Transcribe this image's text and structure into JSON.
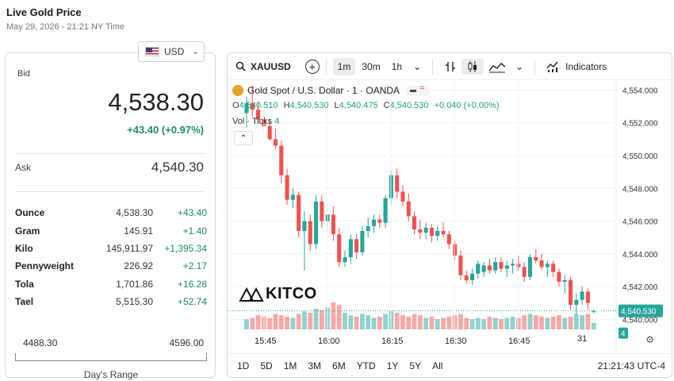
{
  "header": {
    "title": "Live Gold Price",
    "subtitle": "May 29, 2026 - 21:21 NY Time"
  },
  "currency": {
    "selected": "USD",
    "flag_icon": "us-flag-icon"
  },
  "quote": {
    "bid_label": "Bid",
    "bid": "4,538.30",
    "change": "+43.40 (+0.97%)",
    "ask_label": "Ask",
    "ask": "4,540.30"
  },
  "units": [
    {
      "name": "Ounce",
      "price": "4,538.30",
      "change": "+43.40"
    },
    {
      "name": "Gram",
      "price": "145.91",
      "change": "+1.40"
    },
    {
      "name": "Kilo",
      "price": "145,911.97",
      "change": "+1,395.34"
    },
    {
      "name": "Pennyweight",
      "price": "226.92",
      "change": "+2.17"
    },
    {
      "name": "Tola",
      "price": "1,701.86",
      "change": "+16.28"
    },
    {
      "name": "Tael",
      "price": "5,515.30",
      "change": "+52.74"
    }
  ],
  "day_range": {
    "low": "4488.30",
    "high": "4596.00",
    "label": "Day's Range"
  },
  "toolbar": {
    "symbol": "XAUUSD",
    "intervals": [
      "1m",
      "30m",
      "1h"
    ],
    "active_interval": "1m",
    "indicators_label": "Indicators"
  },
  "legend": {
    "instrument": "Gold Spot / U.S. Dollar · 1 · OANDA",
    "o_label": "O",
    "o": "4,540.510",
    "h_label": "H",
    "h": "4,540.530",
    "l_label": "L",
    "l": "4,540.475",
    "c_label": "C",
    "c": "4,540.530",
    "chg": "+0.040 (+0.00%)",
    "vol_label": "Vol · Ticks",
    "vol_value": "4"
  },
  "watermark": "KITCO",
  "bottom": {
    "ranges": [
      "1D",
      "5D",
      "1M",
      "3M",
      "6M",
      "YTD",
      "1Y",
      "5Y",
      "All"
    ],
    "clock": "21:21:43 UTC-4",
    "date_label": "31"
  },
  "colors": {
    "up": "#26a69a",
    "down": "#ef5350",
    "accent": "#1e8e5a"
  },
  "chart_data": {
    "type": "candlestick",
    "y_ticks": [
      "4,554.000",
      "4,552.000",
      "4,550.000",
      "4,548.000",
      "4,546.000",
      "4,544.000",
      "4,542.000",
      "4,540.000"
    ],
    "x_ticks": [
      "15:45",
      "16:00",
      "16:15",
      "16:30",
      "16:45"
    ],
    "ylim": [
      4539.3,
      4554.6
    ],
    "last_price": "4,540.530",
    "last_volume": "4",
    "candles": [
      [
        4552.6,
        4553.6,
        4551.7,
        4553.2,
        8
      ],
      [
        4553.2,
        4554.3,
        4552.4,
        4552.8,
        9
      ],
      [
        4552.8,
        4553.3,
        4552.0,
        4552.2,
        11
      ],
      [
        4552.2,
        4552.6,
        4551.4,
        4551.8,
        10
      ],
      [
        4551.8,
        4552.2,
        4550.9,
        4551.0,
        9
      ],
      [
        4551.0,
        4551.6,
        4550.4,
        4550.6,
        12
      ],
      [
        4550.6,
        4550.9,
        4548.3,
        4548.8,
        11
      ],
      [
        4548.8,
        4549.2,
        4547.0,
        4547.3,
        10
      ],
      [
        4547.3,
        4548.0,
        4546.8,
        4547.6,
        9
      ],
      [
        4547.6,
        4547.8,
        4545.0,
        4545.4,
        12
      ],
      [
        4545.4,
        4546.6,
        4543.0,
        4546.0,
        14
      ],
      [
        4546.0,
        4546.4,
        4544.2,
        4544.6,
        13
      ],
      [
        4544.6,
        4547.6,
        4544.3,
        4547.2,
        16
      ],
      [
        4547.2,
        4547.6,
        4545.6,
        4546.0,
        15
      ],
      [
        4546.0,
        4547.0,
        4545.2,
        4546.4,
        17
      ],
      [
        4546.4,
        4546.9,
        4544.8,
        4545.2,
        21
      ],
      [
        4545.2,
        4545.6,
        4543.2,
        4543.5,
        19
      ],
      [
        4543.5,
        4544.2,
        4543.2,
        4543.8,
        13
      ],
      [
        4543.8,
        4545.2,
        4543.4,
        4544.9,
        11
      ],
      [
        4544.9,
        4545.2,
        4543.7,
        4544.1,
        10
      ],
      [
        4544.1,
        4545.7,
        4543.9,
        4545.4,
        12
      ],
      [
        4545.4,
        4546.2,
        4545.0,
        4545.7,
        11
      ],
      [
        4545.7,
        4546.4,
        4545.3,
        4546.1,
        9
      ],
      [
        4546.1,
        4546.4,
        4545.6,
        4545.9,
        10
      ],
      [
        4545.9,
        4547.6,
        4545.6,
        4547.4,
        12
      ],
      [
        4547.4,
        4549.1,
        4547.0,
        4548.8,
        14
      ],
      [
        4548.8,
        4549.2,
        4547.4,
        4547.8,
        13
      ],
      [
        4547.8,
        4548.2,
        4546.9,
        4547.2,
        11
      ],
      [
        4547.2,
        4547.7,
        4546.0,
        4546.3,
        10
      ],
      [
        4546.3,
        4546.6,
        4545.2,
        4545.5,
        12
      ],
      [
        4545.5,
        4546.1,
        4544.9,
        4545.3,
        11
      ],
      [
        4545.3,
        4545.9,
        4544.9,
        4545.6,
        9
      ],
      [
        4545.6,
        4545.8,
        4544.7,
        4545.1,
        10
      ],
      [
        4545.1,
        4545.7,
        4544.8,
        4545.4,
        8
      ],
      [
        4545.4,
        4545.9,
        4545.0,
        4545.2,
        9
      ],
      [
        4545.2,
        4545.4,
        4544.3,
        4544.6,
        10
      ],
      [
        4544.6,
        4544.8,
        4543.6,
        4543.9,
        11
      ],
      [
        4543.9,
        4544.2,
        4542.4,
        4542.7,
        12
      ],
      [
        4542.7,
        4543.0,
        4542.2,
        4542.4,
        9
      ],
      [
        4542.4,
        4543.1,
        4542.1,
        4542.8,
        8
      ],
      [
        4542.8,
        4543.6,
        4542.5,
        4543.4,
        9
      ],
      [
        4542.9,
        4543.5,
        4542.6,
        4543.3,
        8
      ],
      [
        4543.3,
        4543.7,
        4542.8,
        4543.0,
        10
      ],
      [
        4543.0,
        4543.8,
        4542.8,
        4543.5,
        9
      ],
      [
        4543.5,
        4543.8,
        4542.9,
        4543.1,
        8
      ],
      [
        4543.1,
        4543.6,
        4542.6,
        4543.3,
        9
      ],
      [
        4543.3,
        4543.7,
        4542.8,
        4543.4,
        10
      ],
      [
        4543.4,
        4543.9,
        4543.0,
        4543.2,
        9
      ],
      [
        4543.2,
        4543.5,
        4542.3,
        4542.6,
        11
      ],
      [
        4542.6,
        4544.0,
        4542.4,
        4543.8,
        12
      ],
      [
        4543.8,
        4544.3,
        4543.4,
        4543.6,
        11
      ],
      [
        4543.6,
        4544.0,
        4543.0,
        4543.2,
        10
      ],
      [
        4543.2,
        4543.6,
        4542.6,
        4543.4,
        9
      ],
      [
        4543.4,
        4543.6,
        4542.6,
        4542.9,
        10
      ],
      [
        4542.9,
        4543.1,
        4542.0,
        4542.3,
        11
      ],
      [
        4542.3,
        4542.7,
        4541.6,
        4542.4,
        9
      ],
      [
        4542.4,
        4542.6,
        4540.6,
        4540.9,
        10
      ],
      [
        4540.9,
        4541.6,
        4540.3,
        4541.2,
        12
      ],
      [
        4541.2,
        4542.0,
        4540.9,
        4541.7,
        11
      ],
      [
        4541.7,
        4541.9,
        4540.6,
        4541.0,
        12
      ],
      [
        4540.5,
        4540.6,
        4540.4,
        4540.5,
        5
      ]
    ]
  }
}
